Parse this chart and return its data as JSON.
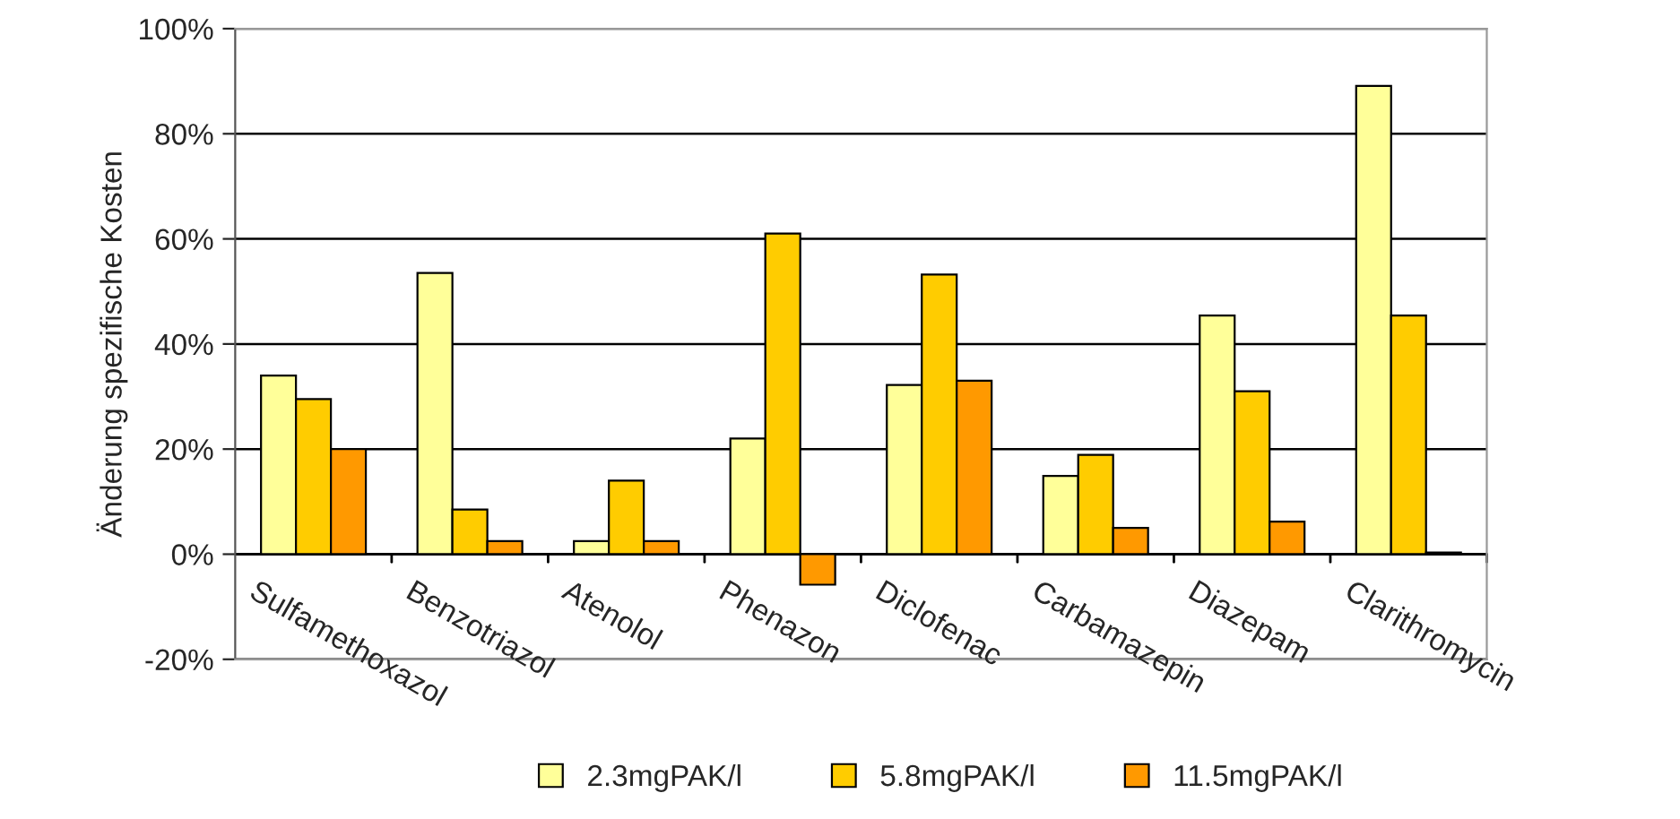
{
  "chart_data": {
    "type": "bar",
    "ylabel": "Änderung spezifische Kosten",
    "categories": [
      "Sulfamethoxazol",
      "Benzotriazol",
      "Atenolol",
      "Phenazon",
      "Diclofenac",
      "Carbamazepin",
      "Diazepam",
      "Clarithromycin"
    ],
    "series": [
      {
        "name": "2.3mgPAK/l",
        "color": "#ffff99",
        "values": [
          34,
          53.5,
          2.5,
          22,
          32.2,
          14.9,
          45.4,
          89.1
        ]
      },
      {
        "name": "5.8mgPAK/l",
        "color": "#ffcc00",
        "values": [
          29.5,
          8.5,
          14,
          61,
          53.2,
          18.9,
          31,
          45.4
        ]
      },
      {
        "name": "11.5mgPAK/l",
        "color": "#ff9900",
        "values": [
          20,
          2.5,
          2.5,
          -5.8,
          33,
          5,
          6.2,
          0.3
        ]
      }
    ],
    "ylim": [
      -20,
      100
    ],
    "yticks": [
      {
        "value": -20,
        "label": "-20%"
      },
      {
        "value": 0,
        "label": "0%"
      },
      {
        "value": 20,
        "label": "20%"
      },
      {
        "value": 40,
        "label": "40%"
      },
      {
        "value": 60,
        "label": "60%"
      },
      {
        "value": 80,
        "label": "80%"
      },
      {
        "value": 100,
        "label": "100%"
      }
    ],
    "grid": "y",
    "legend": "bottom"
  }
}
